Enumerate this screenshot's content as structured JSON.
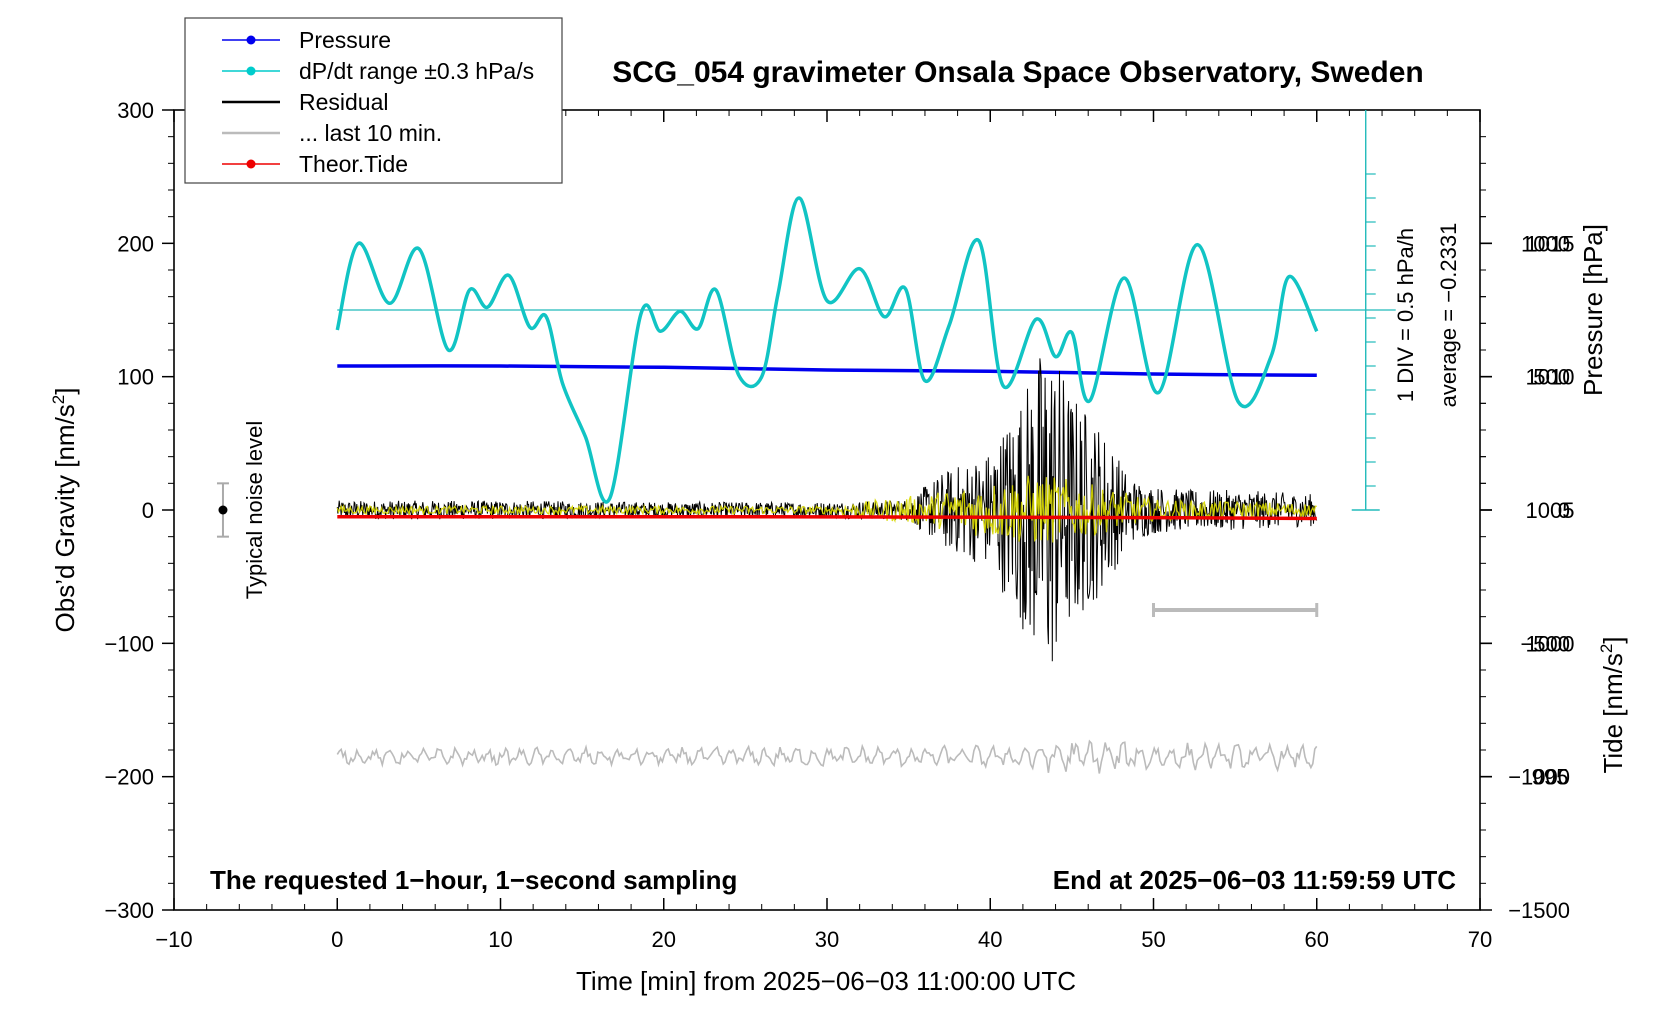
{
  "chart_data": {
    "type": "line",
    "title": "SCG_054 gravimeter Onsala Space Observatory, Sweden",
    "xlabel": "Time [min] from 2025−06−03 11:00:00 UTC",
    "ylabel_left_main": "Obs’d Gravity [nm/s",
    "ylabel_left_sup": "2",
    "ylabel_left_end": "]",
    "ylabel_right_pressure": "Pressure [hPa]",
    "ylabel_right_tide_main": "Tide [nm/s",
    "ylabel_right_tide_sup": "2",
    "ylabel_right_tide_end": "]",
    "xlim": [
      -10,
      70
    ],
    "ylim": [
      -300,
      300
    ],
    "pressure_ylim": [
      990,
      1020
    ],
    "tide_ylim": [
      -1500,
      1500
    ],
    "x_ticks": [
      "−10",
      "0",
      "10",
      "20",
      "30",
      "40",
      "50",
      "60",
      "70"
    ],
    "x_tick_values": [
      -10,
      0,
      10,
      20,
      30,
      40,
      50,
      60,
      70
    ],
    "y_ticks": [
      "−300",
      "−200",
      "−100",
      "0",
      "100",
      "200",
      "300"
    ],
    "y_tick_values": [
      -300,
      -200,
      -100,
      0,
      100,
      200,
      300
    ],
    "pressure_ticks": [
      "995",
      "1000",
      "1005",
      "1010",
      "1015"
    ],
    "pressure_tick_values": [
      995,
      1000,
      1005,
      1010,
      1015
    ],
    "tide_ticks": [
      "−1500",
      "−1000",
      "−500",
      "0",
      "500",
      "1000"
    ],
    "tide_tick_values": [
      -1500,
      -1000,
      -500,
      0,
      500,
      1000
    ],
    "legend": [
      {
        "label": "Pressure",
        "color": "#0000ee",
        "marker": true
      },
      {
        "label": "dP/dt range ±0.3 hPa/s",
        "color": "#00cccc",
        "marker": true
      },
      {
        "label": "Residual",
        "color": "#000000",
        "marker": false
      },
      {
        "label": "... last 10 min.",
        "color": "#bbbbbb",
        "marker": false
      },
      {
        "label": "Theor.Tide",
        "color": "#ee0000",
        "marker": true
      }
    ],
    "annotations": {
      "bottom_left": "The requested 1−hour, 1−second sampling",
      "bottom_right": "End at 2025−06−03 11:59:59 UTC",
      "noise_label": "Typical noise level",
      "div_label": "1 DIV = 0.5 hPa/h",
      "average_label": "average = −0.2331"
    },
    "noise_bar": {
      "x": -7,
      "y": 0,
      "range": 20
    },
    "last10_bar": {
      "x_start": 50,
      "x_end": 60,
      "y": -75
    },
    "series": [
      {
        "name": "Pressure",
        "unit": "hPa",
        "color": "#0000ee",
        "x": [
          0,
          10,
          20,
          30,
          40,
          50,
          60
        ],
        "values": [
          1010.4,
          1010.4,
          1010.35,
          1010.25,
          1010.2,
          1010.1,
          1010.05
        ]
      },
      {
        "name": "dP/dt",
        "unit": "gravity-axis units",
        "color": "#11c4c4",
        "baseline": 150,
        "x": [
          0,
          1.3,
          3.2,
          5,
          6.8,
          8.1,
          9.2,
          10.5,
          11.8,
          12.8,
          13.8,
          15.2,
          16.7,
          18.6,
          19.8,
          21,
          22.1,
          23.2,
          24.6,
          26,
          27,
          28.3,
          30,
          32,
          33.5,
          34.8,
          36,
          37.5,
          39.3,
          40.8,
          42.8,
          44,
          45,
          46.1,
          48.2,
          50.3,
          52.7,
          55.2,
          57.2,
          58.3,
          60
        ],
        "values": [
          135,
          200,
          155,
          196,
          120,
          165,
          152,
          176,
          137,
          145,
          95,
          55,
          9,
          147,
          134,
          149,
          136,
          165,
          101,
          100,
          162,
          234,
          157,
          181,
          145,
          166,
          97,
          139,
          202,
          93,
          143,
          115,
          133,
          82,
          174,
          88,
          199,
          81,
          115,
          175,
          134
        ]
      },
      {
        "name": "Theor.Tide",
        "unit": "nm/s2",
        "color": "#ee0000",
        "x": [
          0,
          26,
          52,
          60
        ],
        "values": [
          -25,
          -25,
          -29,
          -32
        ]
      },
      {
        "name": "Residual",
        "unit": "nm/s2",
        "color": "#000000",
        "envelope_x": [
          0,
          10,
          20,
          30,
          35,
          37,
          40,
          42,
          43.5,
          45,
          47,
          48.5,
          50,
          52,
          55,
          60
        ],
        "envelope_values": [
          7,
          7,
          6,
          6,
          8,
          28,
          45,
          90,
          135,
          90,
          60,
          25,
          18,
          15,
          15,
          12
        ]
      },
      {
        "name": "Residual (filtered)",
        "unit": "nm/s2",
        "color": "#d8d800",
        "envelope_x": [
          0,
          30,
          36,
          40,
          43,
          46,
          50,
          60
        ],
        "envelope_values": [
          3,
          3,
          12,
          22,
          28,
          20,
          8,
          5
        ]
      },
      {
        "name": "... last 10 min.",
        "unit": "nm/s2",
        "color": "#bbbbbb",
        "offset": -185,
        "envelope_x": [
          0,
          20,
          40,
          45.5,
          50,
          60
        ],
        "envelope_values": [
          6,
          7,
          8,
          14,
          10,
          9
        ]
      }
    ]
  }
}
